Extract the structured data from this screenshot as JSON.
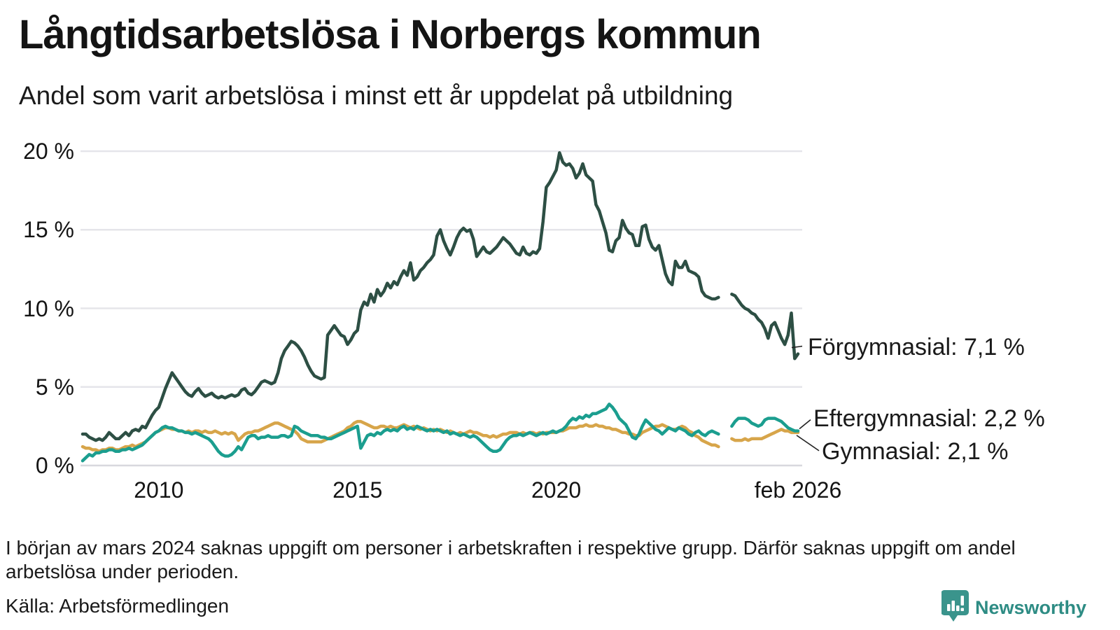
{
  "header": {
    "title": "Långtidsarbetslösa i Norbergs kommun",
    "subtitle": "Andel som varit arbetslösa i minst ett år uppdelat på utbildning"
  },
  "chart_data": {
    "type": "line",
    "title": "Långtidsarbetslösa i Norbergs kommun",
    "subtitle": "Andel som varit arbetslösa i minst ett år uppdelat på utbildning",
    "unit": "%",
    "frequency": "monthly",
    "x_start": "2008-02",
    "x_end": "2026-02",
    "missing_period_shown_as_gap": "2024-03 to 2024-05",
    "ylim": [
      0,
      20
    ],
    "grid": "horizontal",
    "legend_position": "end-of-line-labels",
    "y_ticks": [
      {
        "value": 20,
        "label": "20 %"
      },
      {
        "value": 15,
        "label": "15 %"
      },
      {
        "value": 10,
        "label": "10 %"
      },
      {
        "value": 5,
        "label": "5 %"
      },
      {
        "value": 0,
        "label": "0 %"
      }
    ],
    "x_ticks": [
      {
        "value": 2010,
        "label": "2010"
      },
      {
        "value": 2015,
        "label": "2015"
      },
      {
        "value": 2020,
        "label": "2020"
      },
      {
        "value": 2026.083,
        "label": "feb 2026"
      }
    ],
    "series": [
      {
        "name": "Förgymnasial",
        "color": "#2d4f44",
        "end_value": "7,1 %",
        "end_value_label": "Förgymnasial: 7,1 %",
        "values": [
          2.0,
          2.0,
          1.8,
          1.7,
          1.6,
          1.7,
          1.6,
          1.8,
          2.1,
          1.9,
          1.7,
          1.7,
          1.9,
          2.1,
          1.9,
          2.2,
          2.3,
          2.2,
          2.5,
          2.4,
          2.8,
          3.2,
          3.5,
          3.7,
          4.3,
          4.9,
          5.4,
          5.9,
          5.6,
          5.3,
          5.0,
          4.7,
          4.5,
          4.4,
          4.7,
          4.9,
          4.6,
          4.4,
          4.5,
          4.6,
          4.4,
          4.3,
          4.4,
          4.3,
          4.4,
          4.5,
          4.4,
          4.5,
          4.8,
          4.9,
          4.6,
          4.5,
          4.7,
          5.0,
          5.3,
          5.4,
          5.3,
          5.2,
          5.3,
          5.9,
          6.8,
          7.3,
          7.6,
          7.9,
          7.8,
          7.6,
          7.3,
          6.9,
          6.4,
          6.0,
          5.7,
          5.6,
          5.5,
          5.6,
          8.3,
          8.6,
          8.9,
          8.6,
          8.3,
          8.2,
          7.7,
          8.0,
          8.4,
          8.6,
          9.9,
          10.4,
          10.2,
          10.9,
          10.4,
          11.2,
          10.8,
          11.1,
          11.6,
          11.3,
          11.7,
          11.5,
          12.0,
          12.4,
          12.1,
          12.9,
          11.8,
          12.0,
          12.4,
          12.6,
          12.9,
          13.1,
          13.4,
          14.6,
          15.0,
          14.3,
          13.8,
          13.4,
          13.9,
          14.5,
          14.9,
          15.1,
          14.9,
          15.0,
          14.4,
          13.3,
          13.6,
          13.9,
          13.6,
          13.5,
          13.7,
          13.9,
          14.2,
          14.5,
          14.3,
          14.1,
          13.8,
          13.5,
          13.4,
          13.9,
          13.5,
          13.4,
          13.6,
          13.5,
          13.8,
          15.5,
          17.7,
          18.0,
          18.4,
          18.8,
          19.9,
          19.3,
          19.1,
          19.2,
          18.9,
          18.3,
          18.6,
          19.2,
          18.5,
          18.3,
          18.1,
          16.6,
          16.2,
          15.5,
          14.8,
          13.7,
          13.6,
          14.3,
          14.5,
          15.6,
          15.1,
          14.8,
          14.7,
          14.0,
          14.0,
          15.2,
          15.3,
          14.4,
          13.9,
          13.7,
          14.0,
          13.1,
          12.2,
          11.7,
          11.5,
          13.0,
          12.6,
          12.6,
          13.0,
          12.4,
          12.3,
          12.2,
          12.0,
          11.1,
          10.8,
          10.7,
          10.6,
          10.6,
          10.7,
          null,
          null,
          null,
          10.9,
          10.8,
          10.5,
          10.2,
          10.0,
          9.9,
          9.7,
          9.6,
          9.3,
          9.1,
          8.7,
          8.1,
          8.9,
          9.1,
          8.6,
          8.1,
          7.7,
          8.3,
          9.7,
          6.8,
          7.1
        ]
      },
      {
        "name": "Eftergymnasial",
        "color": "#1b9e8f",
        "end_value": "2,2 %",
        "end_value_label": "Eftergymnasial: 2,2 %",
        "values": [
          0.3,
          0.5,
          0.7,
          0.6,
          0.8,
          0.8,
          0.9,
          0.9,
          1.0,
          1.0,
          0.9,
          0.9,
          1.0,
          1.0,
          1.1,
          1.0,
          1.1,
          1.2,
          1.3,
          1.5,
          1.7,
          1.9,
          2.1,
          2.2,
          2.4,
          2.5,
          2.4,
          2.4,
          2.3,
          2.2,
          2.2,
          2.1,
          2.1,
          2.0,
          2.1,
          2.0,
          1.9,
          1.8,
          1.7,
          1.5,
          1.2,
          0.9,
          0.7,
          0.6,
          0.6,
          0.7,
          0.9,
          1.2,
          1.0,
          1.4,
          1.8,
          1.9,
          1.9,
          1.7,
          1.8,
          1.8,
          1.9,
          1.8,
          1.8,
          1.8,
          1.9,
          1.9,
          1.8,
          1.9,
          2.5,
          2.4,
          2.2,
          2.1,
          2.0,
          1.9,
          1.9,
          1.9,
          1.8,
          1.8,
          1.7,
          1.7,
          1.8,
          1.9,
          2.0,
          2.1,
          2.2,
          2.3,
          2.4,
          2.5,
          1.1,
          1.5,
          1.9,
          2.0,
          1.9,
          2.1,
          2.0,
          2.2,
          2.3,
          2.2,
          2.3,
          2.2,
          2.4,
          2.5,
          2.3,
          2.4,
          2.3,
          2.5,
          2.4,
          2.3,
          2.2,
          2.3,
          2.2,
          2.3,
          2.2,
          2.1,
          2.2,
          2.0,
          2.1,
          2.0,
          1.9,
          2.0,
          1.9,
          1.8,
          1.9,
          1.8,
          1.6,
          1.4,
          1.2,
          1.0,
          0.9,
          0.9,
          1.0,
          1.3,
          1.6,
          1.8,
          1.9,
          1.9,
          2.0,
          1.9,
          2.0,
          2.1,
          2.0,
          1.9,
          2.0,
          2.1,
          2.0,
          2.1,
          2.2,
          2.1,
          2.2,
          2.3,
          2.5,
          2.8,
          3.0,
          2.9,
          3.1,
          3.0,
          3.2,
          3.1,
          3.3,
          3.3,
          3.4,
          3.5,
          3.6,
          3.9,
          3.7,
          3.4,
          3.0,
          2.8,
          2.6,
          2.2,
          1.8,
          1.7,
          2.0,
          2.5,
          2.9,
          2.7,
          2.5,
          2.3,
          2.2,
          2.0,
          2.2,
          2.4,
          2.3,
          2.2,
          2.4,
          2.3,
          2.2,
          2.0,
          1.9,
          2.1,
          2.2,
          2.0,
          1.9,
          2.1,
          2.2,
          2.1,
          2.0,
          null,
          null,
          null,
          2.5,
          2.8,
          3.0,
          3.0,
          3.0,
          2.9,
          2.7,
          2.6,
          2.5,
          2.6,
          2.9,
          3.0,
          3.0,
          3.0,
          2.9,
          2.8,
          2.6,
          2.4,
          2.3,
          2.2,
          2.2
        ]
      },
      {
        "name": "Gymnasial",
        "color": "#d7a54a",
        "end_value": "2,1 %",
        "end_value_label": "Gymnasial: 2,1 %",
        "values": [
          1.2,
          1.1,
          1.1,
          1.0,
          1.0,
          0.9,
          1.0,
          1.0,
          1.1,
          1.1,
          1.0,
          1.0,
          1.1,
          1.2,
          1.2,
          1.3,
          1.2,
          1.3,
          1.4,
          1.5,
          1.7,
          1.9,
          2.1,
          2.2,
          2.3,
          2.4,
          2.4,
          2.3,
          2.3,
          2.2,
          2.2,
          2.1,
          2.2,
          2.1,
          2.2,
          2.2,
          2.1,
          2.2,
          2.1,
          2.1,
          2.2,
          2.1,
          2.0,
          2.1,
          2.0,
          2.1,
          2.0,
          1.6,
          1.8,
          2.0,
          2.1,
          2.1,
          2.2,
          2.2,
          2.3,
          2.4,
          2.5,
          2.6,
          2.7,
          2.7,
          2.6,
          2.5,
          2.4,
          2.3,
          2.2,
          2.0,
          1.7,
          1.6,
          1.5,
          1.5,
          1.5,
          1.5,
          1.5,
          1.6,
          1.7,
          1.8,
          1.9,
          2.0,
          2.1,
          2.2,
          2.4,
          2.5,
          2.7,
          2.8,
          2.8,
          2.7,
          2.6,
          2.5,
          2.4,
          2.4,
          2.5,
          2.5,
          2.4,
          2.5,
          2.4,
          2.4,
          2.5,
          2.6,
          2.5,
          2.4,
          2.5,
          2.4,
          2.3,
          2.4,
          2.3,
          2.2,
          2.3,
          2.2,
          2.3,
          2.2,
          2.1,
          2.2,
          2.1,
          2.0,
          2.1,
          2.0,
          2.1,
          2.2,
          2.1,
          2.1,
          2.0,
          1.9,
          1.9,
          1.8,
          1.9,
          1.8,
          1.9,
          2.0,
          2.0,
          2.1,
          2.1,
          2.1,
          2.0,
          2.1,
          2.0,
          2.1,
          2.1,
          2.0,
          2.1,
          2.0,
          2.1,
          2.1,
          2.1,
          2.1,
          2.2,
          2.2,
          2.3,
          2.4,
          2.4,
          2.4,
          2.5,
          2.5,
          2.6,
          2.5,
          2.5,
          2.6,
          2.5,
          2.5,
          2.4,
          2.4,
          2.3,
          2.3,
          2.2,
          2.1,
          2.1,
          2.0,
          2.0,
          1.9,
          1.9,
          2.1,
          2.2,
          2.3,
          2.4,
          2.5,
          2.5,
          2.6,
          2.5,
          2.4,
          2.3,
          2.3,
          2.4,
          2.5,
          2.4,
          2.2,
          2.1,
          1.9,
          1.8,
          1.6,
          1.5,
          1.4,
          1.3,
          1.3,
          1.2,
          null,
          null,
          null,
          1.7,
          1.6,
          1.6,
          1.6,
          1.7,
          1.6,
          1.7,
          1.7,
          1.7,
          1.7,
          1.8,
          1.9,
          2.0,
          2.1,
          2.2,
          2.3,
          2.2,
          2.2,
          2.1,
          2.1,
          2.1
        ]
      }
    ],
    "colors": {
      "gridline": "#e5e5ea",
      "baseline": "#d8d8de",
      "leader_line": "#222222"
    }
  },
  "footer": {
    "note": "I början av mars 2024 saknas uppgift om personer i arbetskraften i respektive grupp. Därför saknas uppgift om andel arbetslösa under perioden.",
    "source": "Källa: Arbetsförmedlingen"
  },
  "logo": {
    "text": "Newsworthy",
    "icon": "newsworthy-chart-bubble-icon",
    "color": "#2e8c84",
    "icon_color": "#3a948c"
  }
}
